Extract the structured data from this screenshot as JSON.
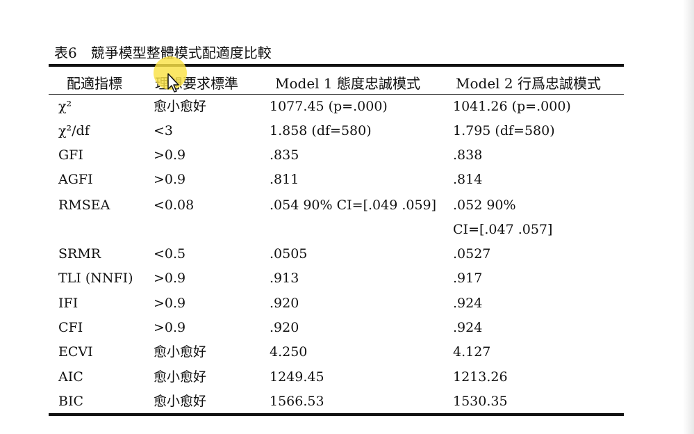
{
  "caption": "表6　競爭模型整體模式配適度比較",
  "headers": {
    "index": "配適指標",
    "criterion": "理想要求標準",
    "model1": "Model 1 態度忠誠模式",
    "model2": "Model 2 行爲忠誠模式"
  },
  "rows": [
    {
      "index": "χ²",
      "criterion": "愈小愈好",
      "model1": "1077.45 (p=.000)",
      "model2": "1041.26 (p=.000)"
    },
    {
      "index": "χ²/df",
      "criterion": "<3",
      "model1": "1.858 (df=580)",
      "model2": "1.795 (df=580)"
    },
    {
      "index": "GFI",
      "criterion": ">0.9",
      "model1": ".835",
      "model2": ".838"
    },
    {
      "index": "AGFI",
      "criterion": ">0.9",
      "model1": ".811",
      "model2": ".814"
    },
    {
      "index": "RMSEA",
      "criterion": "<0.08",
      "model1": ".054 90% CI=[.049 .059]",
      "model2": ".052 90%",
      "model2_cont": "CI=[.047 .057]"
    },
    {
      "index": "SRMR",
      "criterion": "<0.5",
      "model1": ".0505",
      "model2": ".0527"
    },
    {
      "index": "TLI (NNFI)",
      "criterion": ">0.9",
      "model1": ".913",
      "model2": ".917"
    },
    {
      "index": "IFI",
      "criterion": ">0.9",
      "model1": ".920",
      "model2": ".924"
    },
    {
      "index": "CFI",
      "criterion": ">0.9",
      "model1": ".920",
      "model2": ".924"
    },
    {
      "index": "ECVI",
      "criterion": "愈小愈好",
      "model1": "4.250",
      "model2": "4.127"
    },
    {
      "index": "AIC",
      "criterion": "愈小愈好",
      "model1": "1249.45",
      "model2": "1213.26"
    },
    {
      "index": "BIC",
      "criterion": "愈小愈好",
      "model1": "1566.53",
      "model2": "1530.35"
    }
  ],
  "colors": {
    "text": "#111111",
    "highlight": "#fae246"
  },
  "icons": {
    "cursor": "mouse-pointer-icon",
    "highlight": "cursor-highlight-circle"
  }
}
